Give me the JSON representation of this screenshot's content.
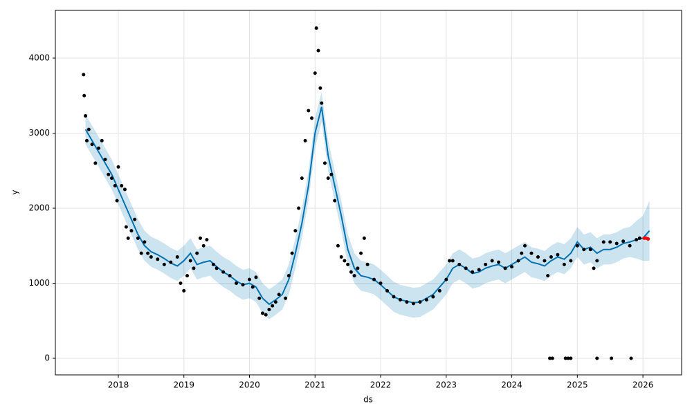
{
  "chart_data": {
    "type": "forecast",
    "xlabel": "ds",
    "ylabel": "y",
    "xlim": [
      2017.04,
      2026.59
    ],
    "ylim": [
      -221,
      4636
    ],
    "xticks": [
      2018,
      2019,
      2020,
      2021,
      2022,
      2023,
      2024,
      2025,
      2026
    ],
    "yticks": [
      0,
      1000,
      2000,
      3000,
      4000
    ],
    "grid": true,
    "series": [
      {
        "type": "band",
        "color": "#0072b2",
        "opacity": 0.2,
        "x": [
          2017.5,
          2017.6,
          2017.7,
          2017.8,
          2017.9,
          2018.0,
          2018.1,
          2018.2,
          2018.3,
          2018.4,
          2018.5,
          2018.6,
          2018.7,
          2018.8,
          2018.9,
          2019.0,
          2019.1,
          2019.2,
          2019.3,
          2019.4,
          2019.5,
          2019.6,
          2019.7,
          2019.8,
          2019.9,
          2020.0,
          2020.1,
          2020.2,
          2020.3,
          2020.4,
          2020.5,
          2020.6,
          2020.7,
          2020.8,
          2020.9,
          2021.0,
          2021.1,
          2021.2,
          2021.3,
          2021.4,
          2021.5,
          2021.6,
          2021.7,
          2021.8,
          2021.9,
          2022.0,
          2022.1,
          2022.2,
          2022.3,
          2022.4,
          2022.5,
          2022.6,
          2022.7,
          2022.8,
          2022.9,
          2023.0,
          2023.1,
          2023.2,
          2023.3,
          2023.4,
          2023.5,
          2023.6,
          2023.7,
          2023.8,
          2023.9,
          2024.0,
          2024.1,
          2024.2,
          2024.3,
          2024.4,
          2024.5,
          2024.6,
          2024.7,
          2024.8,
          2024.9,
          2025.0,
          2025.1,
          2025.2,
          2025.3,
          2025.4,
          2025.5,
          2025.6,
          2025.7,
          2025.8,
          2025.9,
          2026.0,
          2026.1
        ],
        "lower": [
          2850,
          2700,
          2550,
          2400,
          2250,
          2050,
          1850,
          1650,
          1450,
          1300,
          1220,
          1180,
          1130,
          1070,
          1030,
          1100,
          1200,
          1050,
          1080,
          1100,
          1020,
          950,
          900,
          830,
          780,
          800,
          750,
          600,
          520,
          580,
          650,
          850,
          1200,
          1600,
          2100,
          2800,
          3150,
          2500,
          2100,
          1700,
          1250,
          1000,
          900,
          880,
          850,
          780,
          700,
          620,
          580,
          560,
          540,
          550,
          600,
          650,
          750,
          850,
          1000,
          1050,
          1000,
          930,
          950,
          1000,
          1030,
          1050,
          1000,
          1050,
          1100,
          1150,
          1080,
          1060,
          1030,
          1100,
          1150,
          1120,
          1200,
          1350,
          1250,
          1280,
          1200,
          1250,
          1250,
          1280,
          1330,
          1350,
          1330,
          1300,
          1300
        ],
        "upper": [
          3250,
          3100,
          2950,
          2800,
          2650,
          2450,
          2250,
          2050,
          1850,
          1700,
          1620,
          1580,
          1530,
          1470,
          1430,
          1500,
          1600,
          1450,
          1480,
          1500,
          1420,
          1350,
          1300,
          1230,
          1180,
          1200,
          1150,
          1000,
          920,
          980,
          1050,
          1250,
          1600,
          2000,
          2500,
          3200,
          3550,
          2900,
          2500,
          2100,
          1650,
          1400,
          1300,
          1280,
          1250,
          1180,
          1100,
          1020,
          980,
          960,
          940,
          950,
          1000,
          1050,
          1150,
          1250,
          1400,
          1450,
          1400,
          1330,
          1350,
          1400,
          1430,
          1450,
          1400,
          1450,
          1500,
          1550,
          1480,
          1460,
          1430,
          1500,
          1550,
          1520,
          1600,
          1750,
          1650,
          1680,
          1600,
          1650,
          1650,
          1680,
          1730,
          1750,
          1830,
          1900,
          2100
        ]
      },
      {
        "type": "line",
        "color": "#0072b2",
        "x": [
          2017.5,
          2017.6,
          2017.7,
          2017.8,
          2017.9,
          2018.0,
          2018.1,
          2018.2,
          2018.3,
          2018.4,
          2018.5,
          2018.6,
          2018.7,
          2018.8,
          2018.9,
          2019.0,
          2019.1,
          2019.2,
          2019.3,
          2019.4,
          2019.5,
          2019.6,
          2019.7,
          2019.8,
          2019.9,
          2020.0,
          2020.1,
          2020.2,
          2020.3,
          2020.4,
          2020.5,
          2020.6,
          2020.7,
          2020.8,
          2020.9,
          2021.0,
          2021.1,
          2021.2,
          2021.3,
          2021.4,
          2021.5,
          2021.6,
          2021.7,
          2021.8,
          2021.9,
          2022.0,
          2022.1,
          2022.2,
          2022.3,
          2022.4,
          2022.5,
          2022.6,
          2022.7,
          2022.8,
          2022.9,
          2023.0,
          2023.1,
          2023.2,
          2023.3,
          2023.4,
          2023.5,
          2023.6,
          2023.7,
          2023.8,
          2023.9,
          2024.0,
          2024.1,
          2024.2,
          2024.3,
          2024.4,
          2024.5,
          2024.6,
          2024.7,
          2024.8,
          2024.9,
          2025.0,
          2025.1,
          2025.2,
          2025.3,
          2025.4,
          2025.5,
          2025.6,
          2025.7,
          2025.8,
          2025.9,
          2026.0,
          2026.1
        ],
        "values": [
          3050,
          2900,
          2750,
          2600,
          2450,
          2250,
          2050,
          1850,
          1650,
          1500,
          1420,
          1380,
          1330,
          1270,
          1230,
          1300,
          1400,
          1250,
          1280,
          1300,
          1220,
          1150,
          1100,
          1030,
          980,
          1000,
          950,
          800,
          720,
          780,
          850,
          1050,
          1400,
          1800,
          2300,
          3000,
          3350,
          2700,
          2300,
          1900,
          1450,
          1200,
          1100,
          1080,
          1050,
          980,
          900,
          820,
          780,
          760,
          740,
          750,
          800,
          850,
          950,
          1050,
          1200,
          1250,
          1200,
          1130,
          1150,
          1200,
          1230,
          1250,
          1200,
          1250,
          1300,
          1350,
          1280,
          1260,
          1230,
          1300,
          1350,
          1320,
          1400,
          1550,
          1450,
          1480,
          1400,
          1450,
          1450,
          1480,
          1530,
          1550,
          1580,
          1600,
          1700
        ]
      },
      {
        "type": "scatter",
        "color": "#000000",
        "x": [
          2017.47,
          2017.48,
          2017.5,
          2017.52,
          2017.55,
          2017.6,
          2017.65,
          2017.7,
          2017.75,
          2017.8,
          2017.85,
          2017.9,
          2017.95,
          2017.98,
          2018.0,
          2018.05,
          2018.1,
          2018.12,
          2018.15,
          2018.2,
          2018.25,
          2018.3,
          2018.35,
          2018.4,
          2018.45,
          2018.5,
          2018.6,
          2018.7,
          2018.8,
          2018.9,
          2018.95,
          2019.0,
          2019.05,
          2019.1,
          2019.15,
          2019.2,
          2019.25,
          2019.3,
          2019.35,
          2019.45,
          2019.5,
          2019.6,
          2019.7,
          2019.8,
          2019.9,
          2020.0,
          2020.05,
          2020.1,
          2020.15,
          2020.2,
          2020.25,
          2020.3,
          2020.35,
          2020.4,
          2020.45,
          2020.55,
          2020.6,
          2020.65,
          2020.7,
          2020.75,
          2020.8,
          2020.85,
          2020.9,
          2020.95,
          2021.0,
          2021.02,
          2021.05,
          2021.08,
          2021.1,
          2021.15,
          2021.2,
          2021.25,
          2021.3,
          2021.35,
          2021.4,
          2021.45,
          2021.5,
          2021.55,
          2021.6,
          2021.65,
          2021.7,
          2021.75,
          2021.8,
          2021.9,
          2022.0,
          2022.1,
          2022.2,
          2022.3,
          2022.4,
          2022.5,
          2022.6,
          2022.7,
          2022.8,
          2022.9,
          2023.0,
          2023.05,
          2023.1,
          2023.2,
          2023.3,
          2023.4,
          2023.5,
          2023.6,
          2023.7,
          2023.8,
          2023.9,
          2024.0,
          2024.1,
          2024.15,
          2024.2,
          2024.3,
          2024.4,
          2024.5,
          2024.55,
          2024.6,
          2024.7,
          2024.8,
          2024.9,
          2025.0,
          2025.1,
          2025.2,
          2025.25,
          2025.3,
          2025.4,
          2025.5,
          2025.6,
          2025.7,
          2025.8,
          2025.9,
          2025.95,
          2024.58,
          2024.62,
          2024.82,
          2024.86,
          2024.9,
          2025.3,
          2025.52,
          2025.82
        ],
        "values": [
          3780,
          3500,
          3230,
          2900,
          3050,
          2850,
          2600,
          2800,
          2900,
          2650,
          2450,
          2400,
          2300,
          2100,
          2550,
          2300,
          2250,
          1750,
          1600,
          1700,
          1850,
          1600,
          1400,
          1550,
          1400,
          1350,
          1320,
          1250,
          1280,
          1350,
          1000,
          900,
          1100,
          1300,
          1200,
          1400,
          1600,
          1500,
          1580,
          1250,
          1200,
          1150,
          1100,
          1000,
          980,
          1050,
          950,
          1080,
          800,
          600,
          580,
          650,
          700,
          750,
          850,
          800,
          1100,
          1400,
          1700,
          2000,
          2400,
          2900,
          3300,
          3200,
          3800,
          4400,
          4100,
          3600,
          3400,
          2600,
          2400,
          2450,
          2100,
          1500,
          1350,
          1300,
          1250,
          1150,
          1100,
          1200,
          1400,
          1600,
          1250,
          1050,
          1000,
          900,
          820,
          780,
          750,
          730,
          750,
          780,
          820,
          900,
          1050,
          1300,
          1300,
          1250,
          1200,
          1150,
          1180,
          1250,
          1300,
          1280,
          1200,
          1220,
          1300,
          1400,
          1500,
          1400,
          1350,
          1300,
          1100,
          1350,
          1380,
          1250,
          1300,
          1500,
          1450,
          1450,
          1200,
          1300,
          1550,
          1550,
          1530,
          1560,
          1500,
          1580,
          1600,
          0,
          0,
          0,
          0,
          0,
          0,
          0,
          0
        ]
      },
      {
        "type": "scatter",
        "color": "#ff0000",
        "x": [
          2026.02,
          2026.05,
          2026.08
        ],
        "values": [
          1600,
          1600,
          1590
        ]
      }
    ]
  }
}
